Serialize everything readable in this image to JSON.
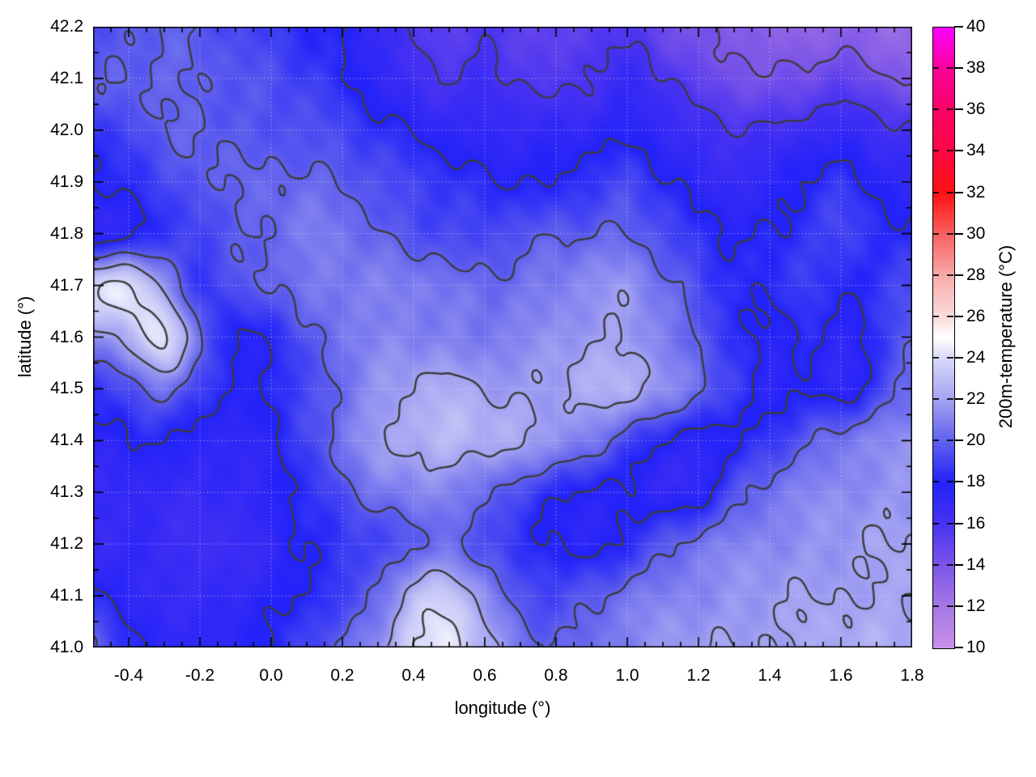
{
  "chart_data": {
    "type": "heatmap",
    "title": "",
    "xlabel": "longitude (°)",
    "ylabel": "latitude (°)",
    "colorbar_label": "200m-temperature (°C)",
    "x_range": [
      -0.5,
      1.8
    ],
    "y_range": [
      41.0,
      42.2
    ],
    "color_range": [
      10,
      40
    ],
    "x_tick_values": [
      -0.4,
      -0.2,
      0.0,
      0.2,
      0.4,
      0.6,
      0.8,
      1.0,
      1.2,
      1.4,
      1.6,
      1.8
    ],
    "x_tick_labels": [
      "-0.4",
      "-0.2",
      "0.0",
      "0.2",
      "0.4",
      "0.6",
      "0.8",
      "1.0",
      "1.2",
      "1.4",
      "1.6",
      "1.8"
    ],
    "y_tick_values": [
      41.0,
      41.1,
      41.2,
      41.3,
      41.4,
      41.5,
      41.6,
      41.7,
      41.8,
      41.9,
      42.0,
      42.1,
      42.2
    ],
    "y_tick_labels": [
      "41.0",
      "41.1",
      "41.2",
      "41.3",
      "41.4",
      "41.5",
      "41.6",
      "41.7",
      "41.8",
      "41.9",
      "42.0",
      "42.1",
      "42.2"
    ],
    "minor_tick_step": 0.05,
    "colorbar_tick_values": [
      10,
      12,
      14,
      16,
      18,
      20,
      22,
      24,
      26,
      28,
      30,
      32,
      34,
      36,
      38,
      40
    ],
    "colorbar_tick_labels": [
      "10",
      "12",
      "14",
      "16",
      "18",
      "20",
      "22",
      "24",
      "26",
      "28",
      "30",
      "32",
      "34",
      "36",
      "38",
      "40"
    ],
    "grid": {
      "style": "dotted",
      "color": "#e6e6eb"
    },
    "contours": {
      "levels": [
        14,
        16,
        18,
        20,
        22,
        24
      ],
      "color": "#3c3c3c"
    },
    "palette": [
      [
        10,
        "#c890ea"
      ],
      [
        12,
        "#a578e4"
      ],
      [
        14,
        "#7c54e8"
      ],
      [
        16,
        "#4832f2"
      ],
      [
        18,
        "#2222fa"
      ],
      [
        20,
        "#6060ee"
      ],
      [
        22,
        "#a2a2f2"
      ],
      [
        24,
        "#d8d8fa"
      ],
      [
        25,
        "#ffffff"
      ],
      [
        26,
        "#fcdcdc"
      ],
      [
        28,
        "#f8aaaa"
      ],
      [
        30,
        "#fa6060"
      ],
      [
        32,
        "#ff1111"
      ],
      [
        34,
        "#ff0744"
      ],
      [
        36,
        "#fc0066"
      ],
      [
        38,
        "#ff0099"
      ],
      [
        40,
        "#ff00ff"
      ]
    ],
    "grid_lons": [
      -0.5,
      -0.4,
      -0.3,
      -0.2,
      -0.1,
      0.0,
      0.1,
      0.2,
      0.3,
      0.4,
      0.5,
      0.6,
      0.7,
      0.8,
      0.9,
      1.0,
      1.1,
      1.2,
      1.3,
      1.4,
      1.5,
      1.6,
      1.7,
      1.8
    ],
    "grid_lats": [
      42.2,
      42.1,
      42.0,
      41.9,
      41.8,
      41.7,
      41.6,
      41.5,
      41.4,
      41.3,
      41.2,
      41.1,
      41.0
    ],
    "temperature_grid_c": [
      [
        19.5,
        19.8,
        20.0,
        19.6,
        19.2,
        19.0,
        18.4,
        17.8,
        16.8,
        15.8,
        15.3,
        15.8,
        15.2,
        14.8,
        15.3,
        15.8,
        14.8,
        14.0,
        13.6,
        13.2,
        13.0,
        13.4,
        13.0,
        12.6
      ],
      [
        19.7,
        20.0,
        20.2,
        20.0,
        19.6,
        19.3,
        18.9,
        18.3,
        17.4,
        16.4,
        15.9,
        16.4,
        15.9,
        15.7,
        16.1,
        16.7,
        16.1,
        15.1,
        14.5,
        14.2,
        14.4,
        14.9,
        14.4,
        13.9
      ],
      [
        18.6,
        19.2,
        19.8,
        20.0,
        19.8,
        19.6,
        19.5,
        19.0,
        18.4,
        17.9,
        17.4,
        17.1,
        17.0,
        17.0,
        17.3,
        17.8,
        17.2,
        16.4,
        16.0,
        16.2,
        16.7,
        17.1,
        16.5,
        16.0
      ],
      [
        17.8,
        18.5,
        19.2,
        19.8,
        20.0,
        20.1,
        20.2,
        20.0,
        19.5,
        19.0,
        18.5,
        18.2,
        18.0,
        18.2,
        18.6,
        19.0,
        18.2,
        17.4,
        17.0,
        17.3,
        18.0,
        18.4,
        17.8,
        17.2
      ],
      [
        17.2,
        17.8,
        18.5,
        19.2,
        19.8,
        20.3,
        20.8,
        20.5,
        20.0,
        19.6,
        19.3,
        19.2,
        19.5,
        19.8,
        20.0,
        20.2,
        19.4,
        18.4,
        17.8,
        18.0,
        18.7,
        19.1,
        18.4,
        18.0
      ],
      [
        23.6,
        24.4,
        21.5,
        18.8,
        19.4,
        20.0,
        20.6,
        21.0,
        21.0,
        20.8,
        20.5,
        20.3,
        20.6,
        21.0,
        21.3,
        21.5,
        20.4,
        19.4,
        18.4,
        18.1,
        18.9,
        18.0,
        18.7,
        19.4
      ],
      [
        21.5,
        22.5,
        24.2,
        20.3,
        17.9,
        18.4,
        19.5,
        20.6,
        21.0,
        21.2,
        21.0,
        20.8,
        21.0,
        21.5,
        21.8,
        22.0,
        20.9,
        19.7,
        18.4,
        17.7,
        18.4,
        17.4,
        18.4,
        19.7
      ],
      [
        18.6,
        19.6,
        20.6,
        19.0,
        17.7,
        18.2,
        19.2,
        20.5,
        21.5,
        22.0,
        22.3,
        22.0,
        21.8,
        22.0,
        22.3,
        22.4,
        21.4,
        20.4,
        18.9,
        17.4,
        18.0,
        17.2,
        19.0,
        20.4
      ],
      [
        17.5,
        17.8,
        18.0,
        17.5,
        17.2,
        17.8,
        19.0,
        20.5,
        21.8,
        22.5,
        22.8,
        22.4,
        22.0,
        21.4,
        20.8,
        19.4,
        18.0,
        17.4,
        17.8,
        18.8,
        19.8,
        20.6,
        21.0,
        21.3
      ],
      [
        17.0,
        17.2,
        17.0,
        16.8,
        17.0,
        17.5,
        18.5,
        19.6,
        20.6,
        21.0,
        21.0,
        20.4,
        19.4,
        18.4,
        17.6,
        17.9,
        17.1,
        17.6,
        19.4,
        20.4,
        21.0,
        21.3,
        21.5,
        21.7
      ],
      [
        16.8,
        17.0,
        16.8,
        16.5,
        16.8,
        17.2,
        18.0,
        18.6,
        19.2,
        20.0,
        20.4,
        19.4,
        18.4,
        18.0,
        17.6,
        18.5,
        19.5,
        20.4,
        21.0,
        21.3,
        21.5,
        21.7,
        21.9,
        22.0
      ],
      [
        18.5,
        17.3,
        17.0,
        16.8,
        17.1,
        17.6,
        18.3,
        19.0,
        20.2,
        22.6,
        23.4,
        21.4,
        19.6,
        19.2,
        19.6,
        20.5,
        21.0,
        21.3,
        21.5,
        21.7,
        21.9,
        22.0,
        22.1,
        22.2
      ],
      [
        20.0,
        18.2,
        17.5,
        17.3,
        17.6,
        18.1,
        19.0,
        20.1,
        21.6,
        24.0,
        24.4,
        22.4,
        20.6,
        20.1,
        20.6,
        21.0,
        21.5,
        21.8,
        22.0,
        22.1,
        22.2,
        22.3,
        22.4,
        22.4
      ]
    ]
  }
}
